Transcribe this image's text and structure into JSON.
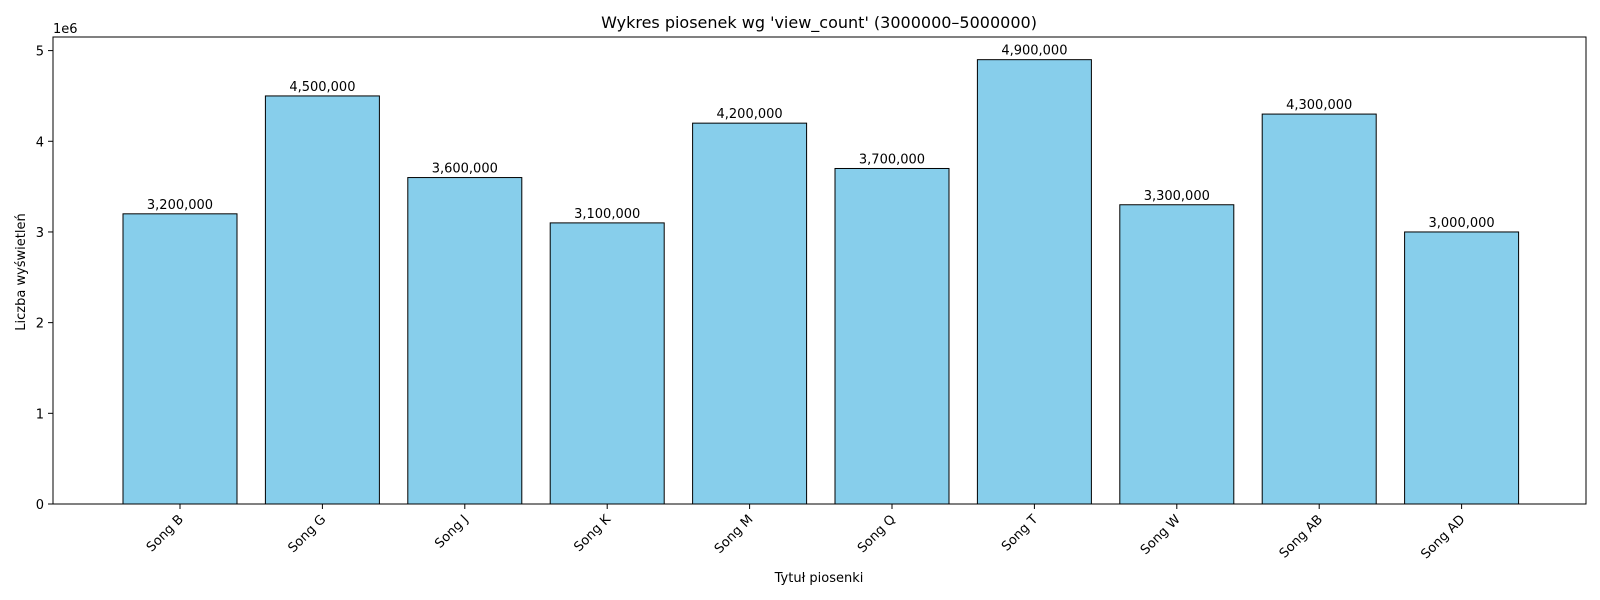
{
  "chart_data": {
    "type": "bar",
    "title": "Wykres piosenek wg 'view_count' (3000000–5000000)",
    "xlabel": "Tytuł piosenki",
    "ylabel": "Liczba wyświetleń",
    "y_offset_label": "1e6",
    "categories": [
      "Song B",
      "Song G",
      "Song J",
      "Song K",
      "Song M",
      "Song Q",
      "Song T",
      "Song W",
      "Song AB",
      "Song AD"
    ],
    "values": [
      3200000,
      4500000,
      3600000,
      3100000,
      4200000,
      3700000,
      4900000,
      3300000,
      4300000,
      3000000
    ],
    "value_labels": [
      "3,200,000",
      "4,500,000",
      "3,600,000",
      "3,100,000",
      "4,200,000",
      "3,700,000",
      "4,900,000",
      "3,300,000",
      "4,300,000",
      "3,000,000"
    ],
    "ylim": [
      0,
      5150000
    ],
    "yticks": [
      0,
      1000000,
      2000000,
      3000000,
      4000000,
      5000000
    ],
    "ytick_labels": [
      "0",
      "1",
      "2",
      "3",
      "4",
      "5"
    ],
    "grid": false,
    "legend": "none",
    "bar_color": "#87CEEB",
    "edge_color": "#000000"
  }
}
